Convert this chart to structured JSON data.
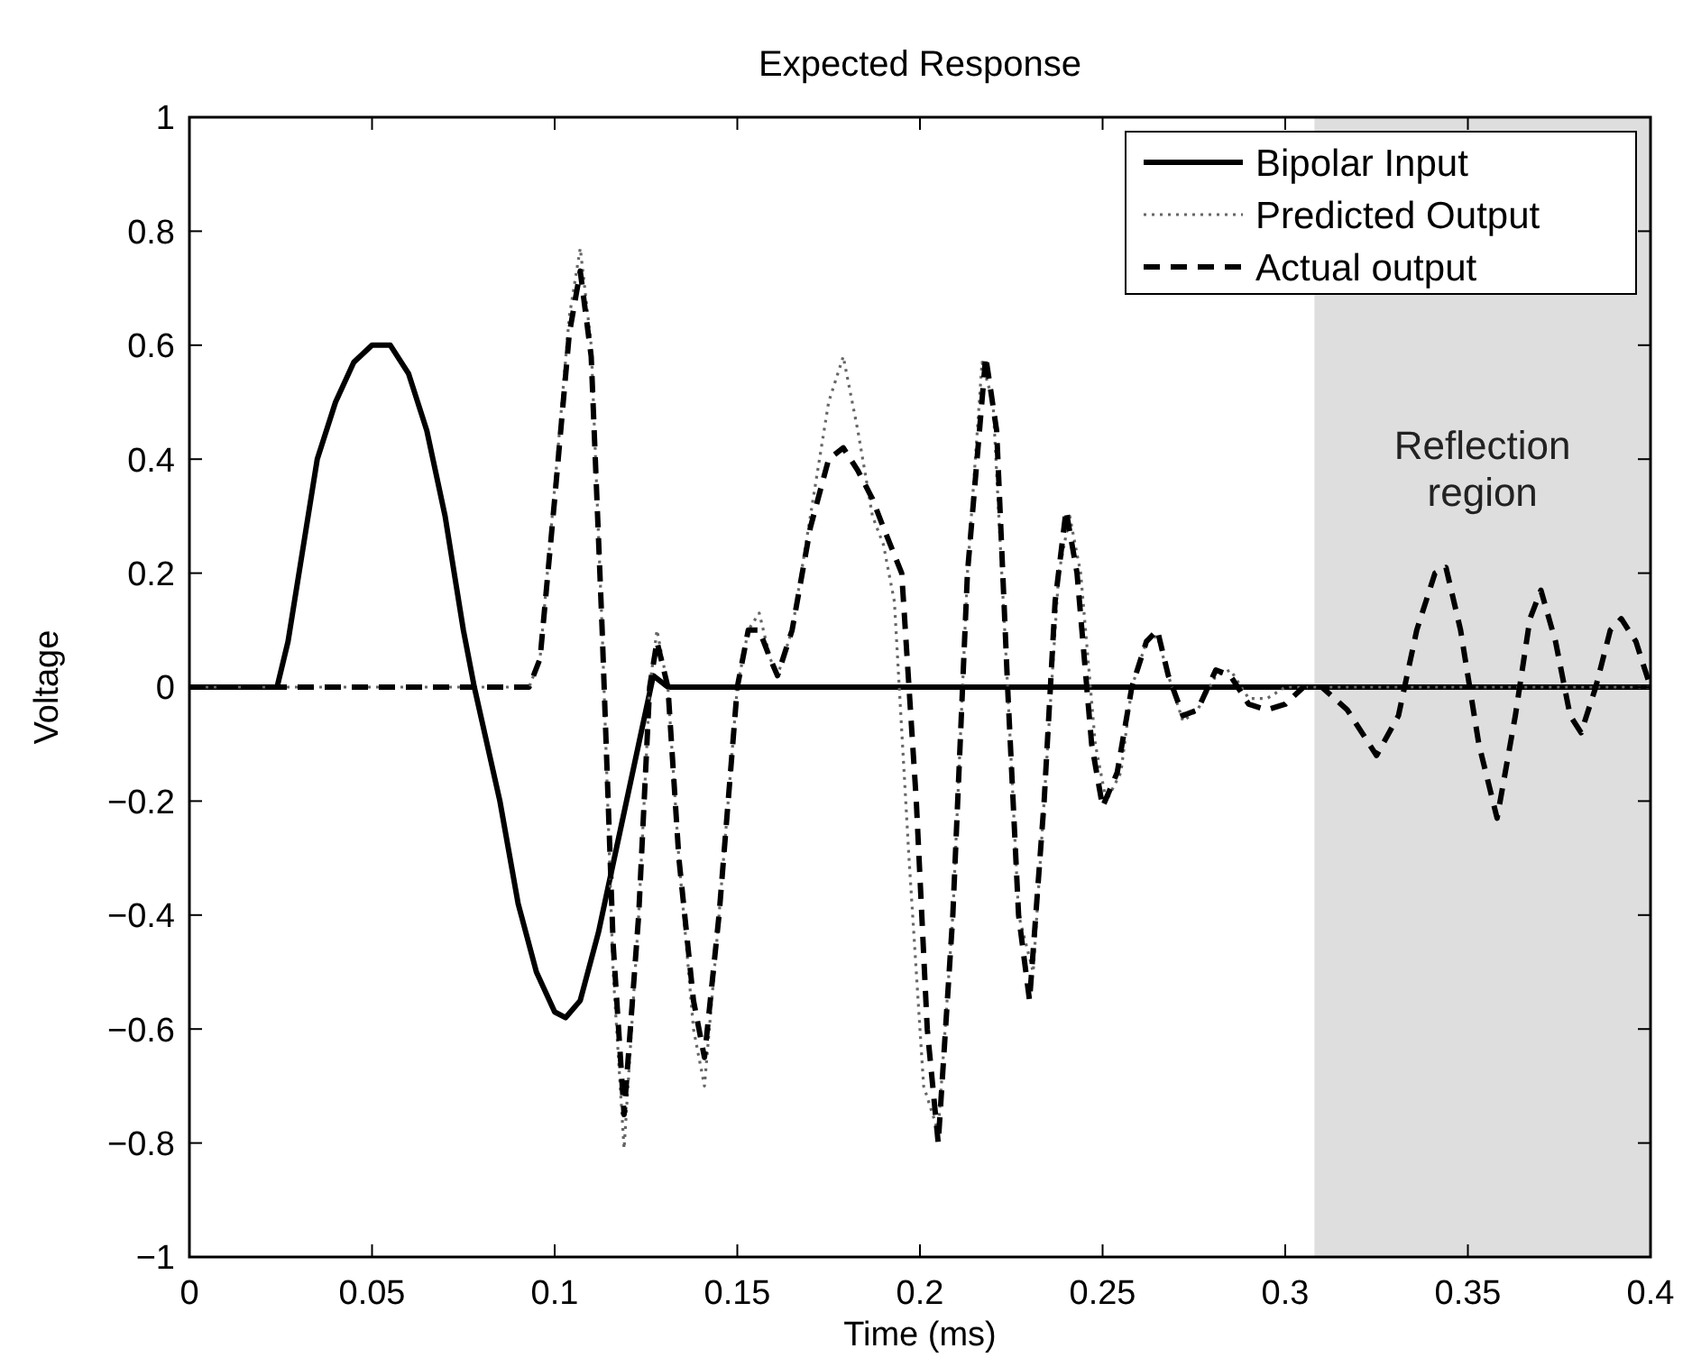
{
  "chart_data": {
    "type": "line",
    "title": "Expected Response",
    "xlabel": "Time (ms)",
    "ylabel": "Voltage",
    "xlim": [
      0,
      0.4
    ],
    "ylim": [
      -1,
      1
    ],
    "xticks": [
      0,
      0.05,
      0.1,
      0.15,
      0.2,
      0.25,
      0.3,
      0.35,
      0.4
    ],
    "yticks": [
      {
        "value": -1,
        "label": "−1"
      },
      {
        "value": -0.8,
        "label": "−0.8"
      },
      {
        "value": -0.6,
        "label": "−0.6"
      },
      {
        "value": -0.4,
        "label": "−0.4"
      },
      {
        "value": -0.2,
        "label": "−0.2"
      },
      0,
      0.2,
      0.4,
      0.6,
      0.8,
      1
    ],
    "grid": false,
    "legend": "top right",
    "bands": [
      {
        "axis": "x",
        "from": 0.308,
        "to": 0.4,
        "label": "Reflection region",
        "color": "#dedede"
      }
    ],
    "series": [
      {
        "name": "Bipolar Input",
        "color": "#000000",
        "line_style": "solid",
        "x": [
          0,
          0.024,
          0.027,
          0.03,
          0.035,
          0.04,
          0.045,
          0.05,
          0.055,
          0.06,
          0.065,
          0.07,
          0.075,
          0.078,
          0.085,
          0.09,
          0.095,
          0.1,
          0.103,
          0.107,
          0.112,
          0.118,
          0.123,
          0.127,
          0.129,
          0.131,
          0.2,
          0.3,
          0.4
        ],
        "values": [
          0,
          0,
          0.08,
          0.2,
          0.4,
          0.5,
          0.57,
          0.6,
          0.6,
          0.55,
          0.45,
          0.3,
          0.1,
          0,
          -0.2,
          -0.38,
          -0.5,
          -0.57,
          -0.58,
          -0.55,
          -0.43,
          -0.25,
          -0.1,
          0.02,
          0.01,
          0,
          0,
          0,
          0
        ]
      },
      {
        "name": "Predicted Output",
        "color": "#666666",
        "line_style": "dotted",
        "x": [
          0,
          0.093,
          0.096,
          0.1,
          0.104,
          0.107,
          0.11,
          0.113,
          0.116,
          0.119,
          0.123,
          0.126,
          0.128,
          0.131,
          0.134,
          0.138,
          0.141,
          0.145,
          0.15,
          0.153,
          0.156,
          0.159,
          0.161,
          0.165,
          0.17,
          0.175,
          0.179,
          0.183,
          0.187,
          0.19,
          0.193,
          0.197,
          0.201,
          0.205,
          0.209,
          0.213,
          0.217,
          0.22,
          0.224,
          0.227,
          0.231,
          0.234,
          0.238,
          0.241,
          0.244,
          0.248,
          0.251,
          0.255,
          0.258,
          0.262,
          0.265,
          0.268,
          0.272,
          0.276,
          0.281,
          0.285,
          0.29,
          0.295,
          0.3,
          0.4
        ],
        "values": [
          0,
          0,
          0.05,
          0.35,
          0.65,
          0.77,
          0.6,
          0.1,
          -0.5,
          -0.81,
          -0.4,
          0,
          0.1,
          0,
          -0.3,
          -0.6,
          -0.7,
          -0.4,
          0,
          0.1,
          0.13,
          0.05,
          0.02,
          0.1,
          0.3,
          0.5,
          0.58,
          0.45,
          0.3,
          0.25,
          0.15,
          -0.3,
          -0.7,
          -0.78,
          -0.4,
          0.2,
          0.57,
          0.5,
          0,
          -0.4,
          -0.5,
          -0.2,
          0.2,
          0.3,
          0.2,
          -0.1,
          -0.2,
          -0.15,
          0,
          0.08,
          0.09,
          0.02,
          -0.06,
          -0.04,
          0.02,
          0.03,
          -0.02,
          -0.02,
          0,
          0
        ]
      },
      {
        "name": "Actual output",
        "color": "#000000",
        "line_style": "dashed",
        "x": [
          0,
          0.093,
          0.096,
          0.1,
          0.104,
          0.107,
          0.11,
          0.113,
          0.116,
          0.119,
          0.123,
          0.126,
          0.128,
          0.131,
          0.134,
          0.138,
          0.141,
          0.145,
          0.15,
          0.153,
          0.156,
          0.159,
          0.161,
          0.165,
          0.17,
          0.175,
          0.179,
          0.183,
          0.187,
          0.19,
          0.195,
          0.199,
          0.202,
          0.205,
          0.209,
          0.213,
          0.218,
          0.221,
          0.224,
          0.227,
          0.23,
          0.234,
          0.237,
          0.24,
          0.243,
          0.247,
          0.25,
          0.254,
          0.258,
          0.262,
          0.265,
          0.268,
          0.272,
          0.276,
          0.281,
          0.285,
          0.29,
          0.295,
          0.3,
          0.305,
          0.31,
          0.317,
          0.325,
          0.331,
          0.336,
          0.341,
          0.344,
          0.348,
          0.353,
          0.358,
          0.363,
          0.367,
          0.37,
          0.374,
          0.378,
          0.381,
          0.385,
          0.389,
          0.392,
          0.396,
          0.4
        ],
        "values": [
          0,
          0,
          0.05,
          0.33,
          0.62,
          0.73,
          0.58,
          0.1,
          -0.45,
          -0.75,
          -0.4,
          0,
          0.08,
          0,
          -0.3,
          -0.55,
          -0.65,
          -0.4,
          0,
          0.1,
          0.1,
          0.05,
          0.02,
          0.1,
          0.28,
          0.4,
          0.42,
          0.38,
          0.33,
          0.28,
          0.2,
          -0.2,
          -0.6,
          -0.8,
          -0.4,
          0.2,
          0.58,
          0.45,
          0,
          -0.4,
          -0.55,
          -0.2,
          0.15,
          0.31,
          0.2,
          -0.1,
          -0.21,
          -0.15,
          0,
          0.08,
          0.1,
          0.02,
          -0.05,
          -0.04,
          0.03,
          0.02,
          -0.03,
          -0.04,
          -0.03,
          0,
          0,
          -0.04,
          -0.12,
          -0.05,
          0.1,
          0.2,
          0.21,
          0.1,
          -0.1,
          -0.23,
          -0.05,
          0.12,
          0.17,
          0.08,
          -0.05,
          -0.08,
          0,
          0.1,
          0.12,
          0.08,
          0
        ]
      }
    ]
  }
}
